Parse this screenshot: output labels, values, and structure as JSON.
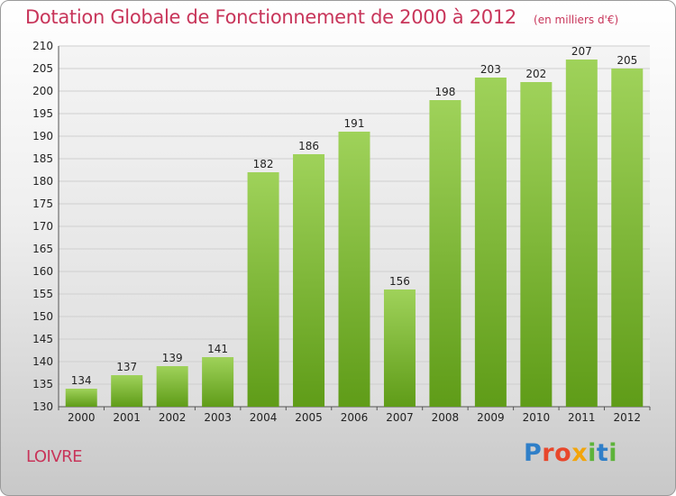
{
  "header": {
    "title": "Dotation Globale de Fonctionnement de 2000 à 2012",
    "unit": "(en milliers d'€)"
  },
  "commune": "LOIVRE",
  "logo": {
    "text": "Proxiti",
    "colors": [
      "#2f7fc8",
      "#e8472b",
      "#f2a50c",
      "#5db33a"
    ]
  },
  "chart_data": {
    "type": "bar",
    "title": "Dotation Globale de Fonctionnement de 2000 à 2012",
    "subtitle": "(en milliers d'€)",
    "xlabel": "",
    "ylabel": "",
    "categories": [
      "2000",
      "2001",
      "2002",
      "2003",
      "2004",
      "2005",
      "2006",
      "2007",
      "2008",
      "2009",
      "2010",
      "2011",
      "2012"
    ],
    "values": [
      134,
      137,
      139,
      141,
      182,
      186,
      191,
      156,
      198,
      203,
      202,
      207,
      205
    ],
    "ylim": [
      130,
      210
    ],
    "yticks": [
      130,
      135,
      140,
      145,
      150,
      155,
      160,
      165,
      170,
      175,
      180,
      185,
      190,
      195,
      200,
      205,
      210
    ],
    "grid": true,
    "legend": "none",
    "bar_color_top": "#9fd25a",
    "bar_color_bottom": "#5f9c18"
  }
}
